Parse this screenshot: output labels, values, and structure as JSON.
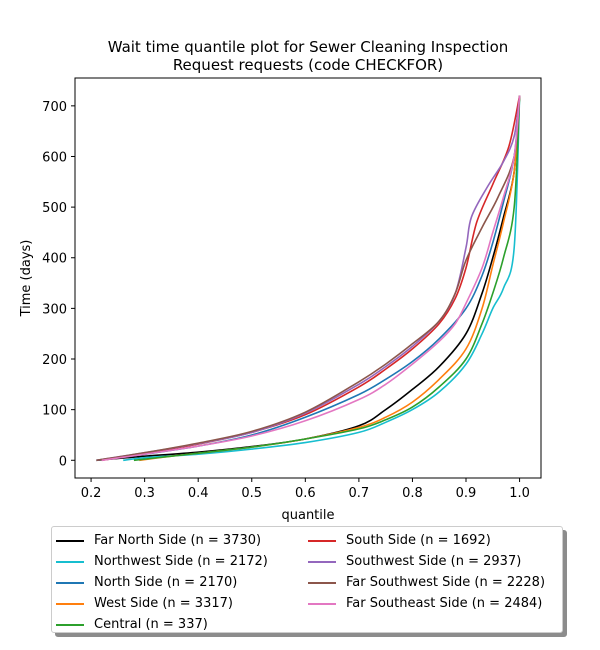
{
  "chart_data": {
    "type": "line",
    "title_line1": "Wait time quantile plot for Sewer Cleaning Inspection",
    "title_line2": "Request  requests (code CHECKFOR)",
    "xlabel": "quantile",
    "ylabel": "Time (days)",
    "xlim": [
      0.17,
      1.04
    ],
    "ylim": [
      -35,
      755
    ],
    "xticks": [
      0.2,
      0.3,
      0.4,
      0.5,
      0.6,
      0.7,
      0.8,
      0.9,
      1.0
    ],
    "xtick_labels": [
      "0.2",
      "0.3",
      "0.4",
      "0.5",
      "0.6",
      "0.7",
      "0.8",
      "0.9",
      "1.0"
    ],
    "yticks": [
      0,
      100,
      200,
      300,
      400,
      500,
      600,
      700
    ],
    "ytick_labels": [
      "0",
      "100",
      "200",
      "300",
      "400",
      "500",
      "600",
      "700"
    ],
    "grid": false,
    "legend_placement": "below plot, two columns",
    "series": [
      {
        "name": "Far North Side (n = 3730)",
        "color": "#000000",
        "points": [
          [
            0.21,
            0
          ],
          [
            0.3,
            8
          ],
          [
            0.4,
            16
          ],
          [
            0.5,
            27
          ],
          [
            0.6,
            42
          ],
          [
            0.7,
            68
          ],
          [
            0.75,
            100
          ],
          [
            0.8,
            140
          ],
          [
            0.85,
            185
          ],
          [
            0.9,
            250
          ],
          [
            0.93,
            330
          ],
          [
            0.95,
            400
          ],
          [
            0.97,
            480
          ],
          [
            0.99,
            570
          ],
          [
            1.0,
            720
          ]
        ]
      },
      {
        "name": "Northwest Side (n = 2172)",
        "color": "#17becf",
        "points": [
          [
            0.26,
            0
          ],
          [
            0.3,
            5
          ],
          [
            0.4,
            12
          ],
          [
            0.5,
            22
          ],
          [
            0.6,
            35
          ],
          [
            0.7,
            55
          ],
          [
            0.75,
            75
          ],
          [
            0.8,
            100
          ],
          [
            0.85,
            135
          ],
          [
            0.9,
            190
          ],
          [
            0.93,
            250
          ],
          [
            0.95,
            300
          ],
          [
            0.97,
            340
          ],
          [
            0.99,
            420
          ],
          [
            1.0,
            720
          ]
        ]
      },
      {
        "name": "North Side (n = 2170)",
        "color": "#1f77b4",
        "points": [
          [
            0.21,
            0
          ],
          [
            0.3,
            12
          ],
          [
            0.4,
            28
          ],
          [
            0.5,
            50
          ],
          [
            0.6,
            85
          ],
          [
            0.7,
            130
          ],
          [
            0.75,
            160
          ],
          [
            0.8,
            195
          ],
          [
            0.85,
            240
          ],
          [
            0.9,
            300
          ],
          [
            0.93,
            365
          ],
          [
            0.95,
            430
          ],
          [
            0.97,
            510
          ],
          [
            0.99,
            600
          ],
          [
            1.0,
            720
          ]
        ]
      },
      {
        "name": "West Side (n = 3317)",
        "color": "#ff7f0e",
        "points": [
          [
            0.29,
            0
          ],
          [
            0.35,
            8
          ],
          [
            0.4,
            14
          ],
          [
            0.5,
            26
          ],
          [
            0.6,
            42
          ],
          [
            0.7,
            65
          ],
          [
            0.75,
            85
          ],
          [
            0.8,
            115
          ],
          [
            0.85,
            160
          ],
          [
            0.9,
            220
          ],
          [
            0.93,
            300
          ],
          [
            0.95,
            385
          ],
          [
            0.97,
            470
          ],
          [
            0.99,
            570
          ],
          [
            1.0,
            720
          ]
        ]
      },
      {
        "name": "Central (n = 337)",
        "color": "#2ca02c",
        "points": [
          [
            0.28,
            0
          ],
          [
            0.35,
            8
          ],
          [
            0.4,
            14
          ],
          [
            0.5,
            26
          ],
          [
            0.6,
            42
          ],
          [
            0.7,
            62
          ],
          [
            0.75,
            80
          ],
          [
            0.8,
            105
          ],
          [
            0.85,
            145
          ],
          [
            0.9,
            200
          ],
          [
            0.93,
            270
          ],
          [
            0.95,
            330
          ],
          [
            0.97,
            400
          ],
          [
            0.99,
            500
          ],
          [
            1.0,
            720
          ]
        ]
      },
      {
        "name": "South Side (n = 1692)",
        "color": "#d62728",
        "points": [
          [
            0.22,
            0
          ],
          [
            0.3,
            14
          ],
          [
            0.4,
            32
          ],
          [
            0.5,
            55
          ],
          [
            0.6,
            90
          ],
          [
            0.7,
            145
          ],
          [
            0.75,
            180
          ],
          [
            0.8,
            220
          ],
          [
            0.85,
            270
          ],
          [
            0.88,
            320
          ],
          [
            0.9,
            380
          ],
          [
            0.92,
            470
          ],
          [
            0.95,
            545
          ],
          [
            0.98,
            620
          ],
          [
            1.0,
            720
          ]
        ]
      },
      {
        "name": "Southwest Side (n = 2937)",
        "color": "#9467bd",
        "points": [
          [
            0.21,
            0
          ],
          [
            0.3,
            15
          ],
          [
            0.4,
            33
          ],
          [
            0.5,
            55
          ],
          [
            0.6,
            93
          ],
          [
            0.7,
            150
          ],
          [
            0.75,
            185
          ],
          [
            0.8,
            225
          ],
          [
            0.85,
            275
          ],
          [
            0.88,
            330
          ],
          [
            0.9,
            420
          ],
          [
            0.91,
            480
          ],
          [
            0.94,
            540
          ],
          [
            0.97,
            590
          ],
          [
            0.99,
            640
          ],
          [
            1.0,
            720
          ]
        ]
      },
      {
        "name": "Far Southwest Side (n = 2228)",
        "color": "#8c564b",
        "points": [
          [
            0.21,
            0
          ],
          [
            0.3,
            15
          ],
          [
            0.4,
            34
          ],
          [
            0.5,
            57
          ],
          [
            0.6,
            95
          ],
          [
            0.7,
            155
          ],
          [
            0.75,
            190
          ],
          [
            0.8,
            230
          ],
          [
            0.85,
            275
          ],
          [
            0.88,
            330
          ],
          [
            0.9,
            395
          ],
          [
            0.93,
            460
          ],
          [
            0.96,
            520
          ],
          [
            0.99,
            600
          ],
          [
            1.0,
            720
          ]
        ]
      },
      {
        "name": "Far Southeast Side (n = 2484)",
        "color": "#e377c2",
        "points": [
          [
            0.22,
            0
          ],
          [
            0.3,
            12
          ],
          [
            0.4,
            28
          ],
          [
            0.5,
            48
          ],
          [
            0.6,
            78
          ],
          [
            0.7,
            120
          ],
          [
            0.75,
            150
          ],
          [
            0.8,
            190
          ],
          [
            0.85,
            235
          ],
          [
            0.88,
            270
          ],
          [
            0.9,
            310
          ],
          [
            0.93,
            380
          ],
          [
            0.95,
            450
          ],
          [
            0.97,
            520
          ],
          [
            0.99,
            600
          ],
          [
            1.0,
            720
          ]
        ]
      }
    ]
  }
}
